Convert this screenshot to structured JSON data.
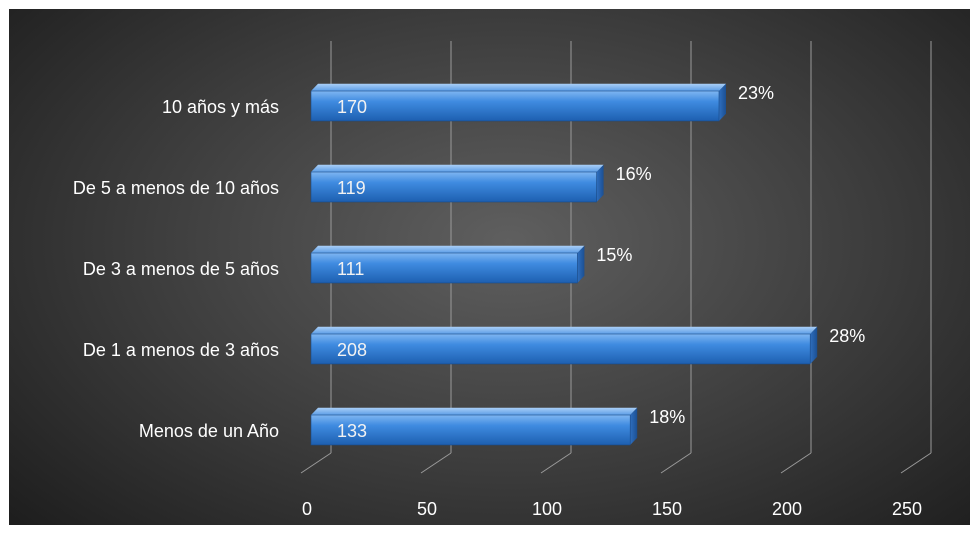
{
  "chart_data": {
    "type": "bar",
    "orientation": "horizontal",
    "style": "3d",
    "categories": [
      "Menos de un Año",
      "De 1 a menos de 3 años",
      "De 3 a menos de 5 años",
      "De 5 a menos de 10 años",
      "10 años y más"
    ],
    "values": [
      133,
      208,
      111,
      119,
      170
    ],
    "value_labels": [
      "133",
      "208",
      "111",
      "119",
      "170"
    ],
    "percent_labels": [
      "18%",
      "28%",
      "15%",
      "16%",
      "23%"
    ],
    "xlim": [
      0,
      250
    ],
    "x_ticks": [
      0,
      50,
      100,
      150,
      200,
      250
    ],
    "x_tick_labels": [
      "0",
      "50",
      "100",
      "150",
      "200",
      "250"
    ],
    "grid": true,
    "legend": "none",
    "bar_color": "#3b82d4",
    "background_color": "#3c3c3c",
    "text_color": "#ffffff"
  }
}
